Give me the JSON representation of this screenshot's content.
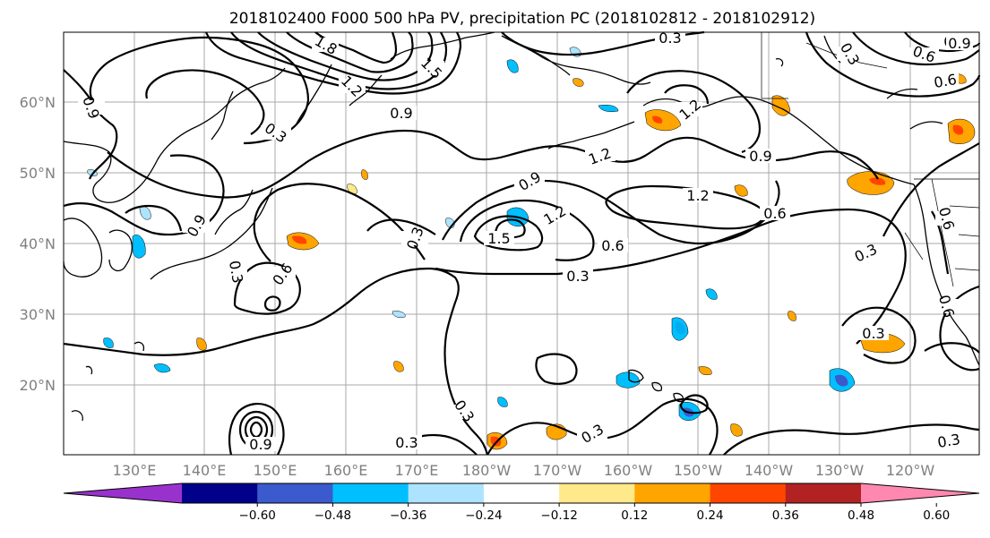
{
  "title": "2018102400 F000 500 hPa PV, precipitation PC (2018102812 - 2018102912)",
  "lat_labels": [
    "60°N",
    "50°N",
    "40°N",
    "30°N",
    "20°N"
  ],
  "lon_labels": [
    "130°E",
    "140°E",
    "150°E",
    "160°E",
    "170°E",
    "180°W",
    "170°W",
    "160°W",
    "150°W",
    "140°W",
    "130°W",
    "120°W"
  ],
  "colorbar": {
    "labels": [
      "−0.60",
      "−0.48",
      "−0.36",
      "−0.24",
      "−0.12",
      "0.12",
      "0.24",
      "0.36",
      "0.48",
      "0.60"
    ],
    "colors": [
      "#9932CC",
      "#00008B",
      "#3A5ACD",
      "#00BFFF",
      "#ADE3FF",
      "#FFFFFF",
      "#FFE98A",
      "#FFA500",
      "#FF4500",
      "#B22222",
      "#FF88B0"
    ]
  },
  "contour_labels": [
    "0.3",
    "0.6",
    "0.9",
    "1.2",
    "1.5",
    "1.8"
  ],
  "contour_label_instances": [
    {
      "name": "contour-label-0.3-top",
      "text": "0.3"
    },
    {
      "name": "contour-label-0.6-top",
      "text": "0.6"
    },
    {
      "name": "contour-label-0.9-top",
      "text": "0.9"
    },
    {
      "name": "contour-label-1.8-top",
      "text": "1.8"
    },
    {
      "name": "contour-label-1.5-top",
      "text": "1.5"
    },
    {
      "name": "contour-label-1.2-top",
      "text": "1.2"
    },
    {
      "name": "contour-label-0.9-nw",
      "text": "0.9"
    },
    {
      "name": "contour-label-0.9-center",
      "text": "0.9"
    },
    {
      "name": "contour-label-0.3-japan",
      "text": "0.3"
    },
    {
      "name": "contour-label-0.9-japan",
      "text": "0.9"
    },
    {
      "name": "contour-label-0.3-west",
      "text": "0.3"
    },
    {
      "name": "contour-label-0.6-west",
      "text": "0.6"
    },
    {
      "name": "contour-label-0.3-mid",
      "text": "0.3"
    },
    {
      "name": "contour-label-0.9-mid",
      "text": "0.9"
    },
    {
      "name": "contour-label-1.2-mid",
      "text": "1.2"
    },
    {
      "name": "contour-label-1.5-mid",
      "text": "1.5"
    },
    {
      "name": "contour-label-1.2-ring",
      "text": "1.2"
    },
    {
      "name": "contour-label-0.6-mid",
      "text": "0.6"
    },
    {
      "name": "contour-label-0.3-center",
      "text": "0.3"
    },
    {
      "name": "contour-label-1.2-east",
      "text": "1.2"
    },
    {
      "name": "contour-label-0.9-east",
      "text": "0.9"
    },
    {
      "name": "contour-label-0.6-east",
      "text": "0.6"
    },
    {
      "name": "contour-label-1.2-alaska",
      "text": "1.2"
    },
    {
      "name": "contour-label-0.3-east",
      "text": "0.3"
    },
    {
      "name": "contour-label-0.6-coast",
      "text": "0.6"
    },
    {
      "name": "contour-label-0.3-canada",
      "text": "0.3"
    },
    {
      "name": "contour-label-0.6-canada",
      "text": "0.6"
    },
    {
      "name": "contour-label-0.9-canada",
      "text": "0.9"
    },
    {
      "name": "contour-label-0.6-southcoast",
      "text": "0.6"
    },
    {
      "name": "contour-label-0.3-hawaii",
      "text": "0.3"
    },
    {
      "name": "contour-label-0.3-south",
      "text": "0.3"
    },
    {
      "name": "contour-label-0.3-bottom",
      "text": "0.3"
    },
    {
      "name": "contour-label-0.3-se",
      "text": "0.3"
    },
    {
      "name": "contour-label-0.3-bottomright",
      "text": "0.3"
    },
    {
      "name": "contour-label-0.9-typhoon",
      "text": "0.9"
    }
  ]
}
